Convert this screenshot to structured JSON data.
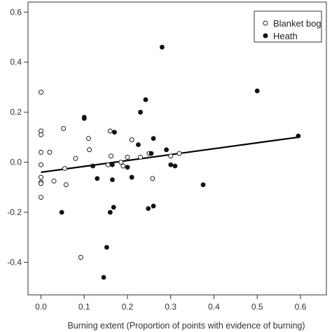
{
  "chart_data": {
    "type": "scatter",
    "title": "",
    "xlabel": "Burning extent (Proportion of points with evidence of burning)",
    "ylabel": "",
    "xlim": [
      -0.03,
      0.66
    ],
    "ylim": [
      -0.53,
      0.64
    ],
    "x_ticks": [
      0.0,
      0.1,
      0.2,
      0.3,
      0.4,
      0.5,
      0.6
    ],
    "x_tick_labels": [
      "0.0",
      "0.1",
      "0.2",
      "0.3",
      "0.4",
      "0.5",
      "0.6"
    ],
    "y_ticks": [
      -0.4,
      -0.2,
      0.0,
      0.2,
      0.4,
      0.6
    ],
    "y_tick_labels": [
      "-0.4",
      "-0.2",
      "0.0",
      "0.2",
      "0.4",
      "0.6"
    ],
    "grid": false,
    "legend_position": "top-right",
    "series": [
      {
        "name": "Blanket bog",
        "marker": "open-circle",
        "color": "#222222",
        "points": [
          {
            "x": 0.0,
            "y": 0.28
          },
          {
            "x": 0.0,
            "y": 0.125
          },
          {
            "x": 0.0,
            "y": 0.11
          },
          {
            "x": 0.0,
            "y": 0.04
          },
          {
            "x": 0.0,
            "y": -0.01
          },
          {
            "x": 0.0,
            "y": -0.06
          },
          {
            "x": 0.0,
            "y": -0.08
          },
          {
            "x": 0.0,
            "y": -0.085
          },
          {
            "x": 0.0,
            "y": -0.14
          },
          {
            "x": 0.02,
            "y": 0.04
          },
          {
            "x": 0.03,
            "y": -0.075
          },
          {
            "x": 0.052,
            "y": 0.135
          },
          {
            "x": 0.055,
            "y": -0.025
          },
          {
            "x": 0.058,
            "y": -0.09
          },
          {
            "x": 0.08,
            "y": 0.015
          },
          {
            "x": 0.092,
            "y": -0.38
          },
          {
            "x": 0.11,
            "y": 0.095
          },
          {
            "x": 0.112,
            "y": 0.05
          },
          {
            "x": 0.155,
            "y": -0.01
          },
          {
            "x": 0.16,
            "y": 0.125
          },
          {
            "x": 0.162,
            "y": 0.025
          },
          {
            "x": 0.185,
            "y": 0.0
          },
          {
            "x": 0.19,
            "y": -0.015
          },
          {
            "x": 0.2,
            "y": 0.02
          },
          {
            "x": 0.21,
            "y": 0.09
          },
          {
            "x": 0.23,
            "y": 0.02
          },
          {
            "x": 0.25,
            "y": 0.035
          },
          {
            "x": 0.258,
            "y": -0.065
          },
          {
            "x": 0.3,
            "y": 0.025
          },
          {
            "x": 0.32,
            "y": 0.035
          }
        ]
      },
      {
        "name": "Heath",
        "marker": "filled-circle",
        "color": "#111111",
        "points": [
          {
            "x": 0.048,
            "y": -0.2
          },
          {
            "x": 0.1,
            "y": 0.18
          },
          {
            "x": 0.1,
            "y": 0.175
          },
          {
            "x": 0.12,
            "y": -0.015
          },
          {
            "x": 0.13,
            "y": -0.065
          },
          {
            "x": 0.145,
            "y": -0.46
          },
          {
            "x": 0.152,
            "y": -0.34
          },
          {
            "x": 0.16,
            "y": -0.2
          },
          {
            "x": 0.165,
            "y": -0.01
          },
          {
            "x": 0.165,
            "y": -0.07
          },
          {
            "x": 0.168,
            "y": -0.18
          },
          {
            "x": 0.17,
            "y": 0.12
          },
          {
            "x": 0.2,
            "y": -0.02
          },
          {
            "x": 0.21,
            "y": -0.06
          },
          {
            "x": 0.225,
            "y": 0.07
          },
          {
            "x": 0.23,
            "y": 0.2
          },
          {
            "x": 0.242,
            "y": 0.25
          },
          {
            "x": 0.248,
            "y": -0.185
          },
          {
            "x": 0.255,
            "y": 0.035
          },
          {
            "x": 0.26,
            "y": 0.095
          },
          {
            "x": 0.26,
            "y": -0.175
          },
          {
            "x": 0.28,
            "y": 0.46
          },
          {
            "x": 0.29,
            "y": 0.05
          },
          {
            "x": 0.3,
            "y": -0.01
          },
          {
            "x": 0.31,
            "y": -0.015
          },
          {
            "x": 0.375,
            "y": -0.09
          },
          {
            "x": 0.5,
            "y": 0.285
          },
          {
            "x": 0.595,
            "y": 0.105
          }
        ]
      }
    ],
    "trend_line": {
      "x": [
        0.0,
        0.595
      ],
      "y": [
        -0.04,
        0.1
      ],
      "color": "#000000"
    }
  }
}
